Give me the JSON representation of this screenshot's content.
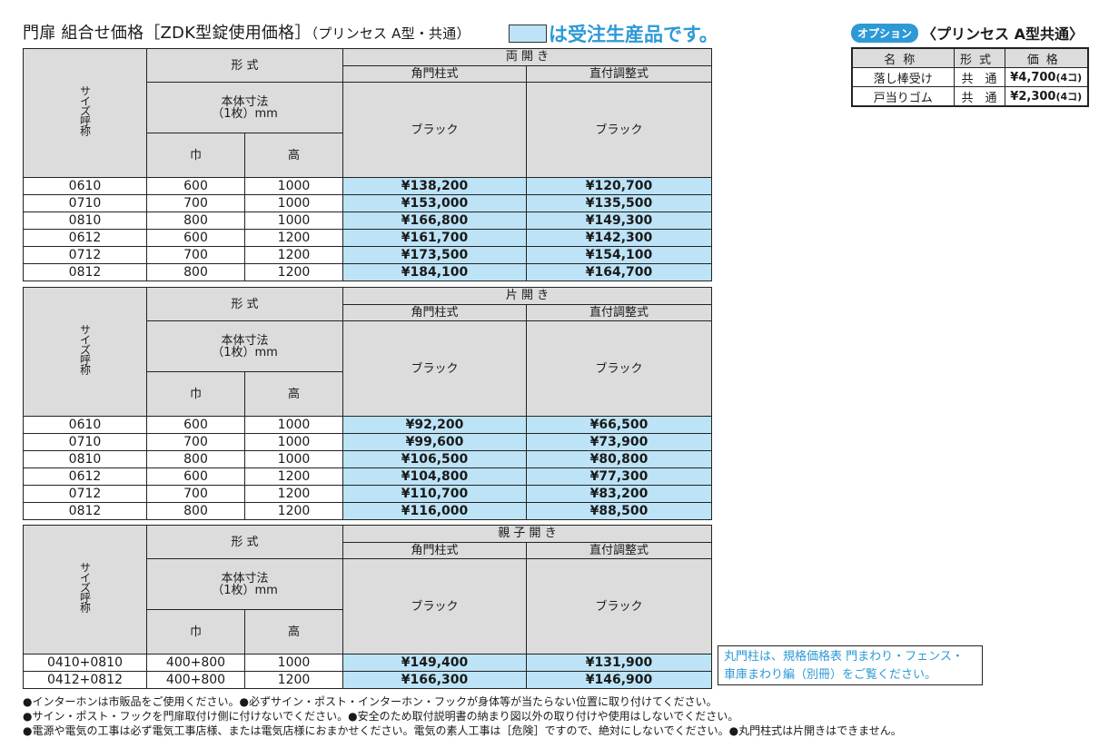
{
  "header": {
    "title": "門扉 組合せ価格［ZDK型錠使用価格］",
    "subtitle": "（プリンセス A型・共通）",
    "legend_text": "は受注生産品です。",
    "legend_color": "#bde3f7",
    "accent_color": "#2d9ad6"
  },
  "common_headers": {
    "size_label": "サイズ呼称",
    "format_label": "形 式",
    "body_size_label_1": "本体寸法",
    "body_size_label_2": "（1枚）mm",
    "width_label": "巾",
    "height_label": "高",
    "col_square_post": "角門柱式",
    "col_direct_adjust": "直付調整式",
    "color_black": "ブラック"
  },
  "tables": [
    {
      "opening_type": "両 開 き",
      "rows": [
        {
          "size": "0610",
          "width": "600",
          "height": "1000",
          "square": "¥138,200",
          "direct": "¥120,700"
        },
        {
          "size": "0710",
          "width": "700",
          "height": "1000",
          "square": "¥153,000",
          "direct": "¥135,500"
        },
        {
          "size": "0810",
          "width": "800",
          "height": "1000",
          "square": "¥166,800",
          "direct": "¥149,300"
        },
        {
          "size": "0612",
          "width": "600",
          "height": "1200",
          "square": "¥161,700",
          "direct": "¥142,300"
        },
        {
          "size": "0712",
          "width": "700",
          "height": "1200",
          "square": "¥173,500",
          "direct": "¥154,100"
        },
        {
          "size": "0812",
          "width": "800",
          "height": "1200",
          "square": "¥184,100",
          "direct": "¥164,700"
        }
      ]
    },
    {
      "opening_type": "片 開 き",
      "rows": [
        {
          "size": "0610",
          "width": "600",
          "height": "1000",
          "square": "¥92,200",
          "direct": "¥66,500"
        },
        {
          "size": "0710",
          "width": "700",
          "height": "1000",
          "square": "¥99,600",
          "direct": "¥73,900"
        },
        {
          "size": "0810",
          "width": "800",
          "height": "1000",
          "square": "¥106,500",
          "direct": "¥80,800"
        },
        {
          "size": "0612",
          "width": "600",
          "height": "1200",
          "square": "¥104,800",
          "direct": "¥77,300"
        },
        {
          "size": "0712",
          "width": "700",
          "height": "1200",
          "square": "¥110,700",
          "direct": "¥83,200"
        },
        {
          "size": "0812",
          "width": "800",
          "height": "1200",
          "square": "¥116,000",
          "direct": "¥88,500"
        }
      ]
    },
    {
      "opening_type": "親 子 開 き",
      "rows": [
        {
          "size": "0410+0810",
          "width": "400+800",
          "height": "1000",
          "square": "¥149,400",
          "direct": "¥131,900"
        },
        {
          "size": "0412+0812",
          "width": "400+800",
          "height": "1200",
          "square": "¥166,300",
          "direct": "¥146,900"
        }
      ]
    }
  ],
  "options": {
    "badge": "オプション",
    "title": "〈プリンセス A型共通〉",
    "headers": [
      "名称",
      "形式",
      "価格"
    ],
    "rows": [
      {
        "name": "落し棒受け",
        "type": "共　通",
        "price": "¥4,700",
        "unit": "(4コ)"
      },
      {
        "name": "戸当りゴム",
        "type": "共　通",
        "price": "¥2,300",
        "unit": "(4コ)"
      }
    ]
  },
  "note_box": {
    "line1": "丸門柱は、規格価格表 門まわり・フェンス・",
    "line2": "車庫まわり編（別冊）をご覧ください。"
  },
  "footnotes": [
    "●インターホンは市販品をご使用ください。●必ずサイン・ポスト・インターホン・フックが身体等が当たらない位置に取り付けてください。",
    "●サイン・ポスト・フックを門扉取付け側に付けないでください。●安全のため取付説明書の納まり図以外の取り付けや使用はしないでください。",
    "●電源や電気の工事は必ず電気工事店様、または電気店様におまかせください。電気の素人工事は［危険］ですので、絶対にしないでください。●丸門柱式は片開きはできません。"
  ]
}
